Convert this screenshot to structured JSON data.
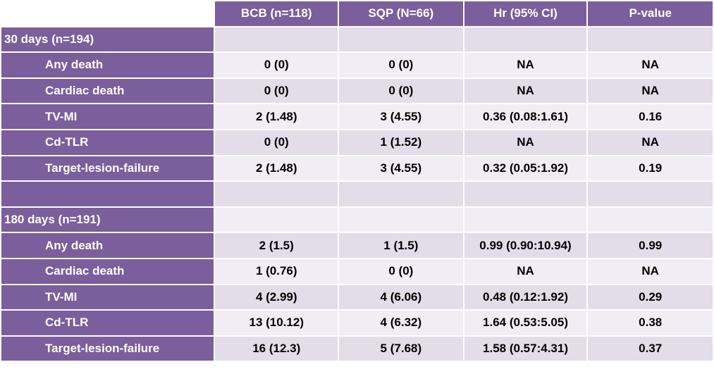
{
  "table": {
    "headers": [
      "",
      "BCB  (n=118)",
      "SQP (N=66)",
      "Hr (95% CI)",
      "P-value"
    ],
    "rows": [
      {
        "label": "30 days (n=194)",
        "kind": "section",
        "cells": [
          "",
          "",
          "",
          ""
        ]
      },
      {
        "label": "Any death",
        "kind": "item",
        "cells": [
          "0 (0)",
          "0 (0)",
          "NA",
          "NA"
        ]
      },
      {
        "label": "Cardiac death",
        "kind": "item",
        "cells": [
          "0 (0)",
          "0 (0)",
          "NA",
          "NA"
        ]
      },
      {
        "label": "TV-MI",
        "kind": "item",
        "cells": [
          "2 (1.48)",
          "3 (4.55)",
          "0.36 (0.08:1.61)",
          "0.16"
        ]
      },
      {
        "label": "Cd-TLR",
        "kind": "item",
        "cells": [
          "0 (0)",
          "1 (1.52)",
          "NA",
          "NA"
        ]
      },
      {
        "label": "Target-lesion-failure",
        "kind": "item",
        "cells": [
          "2 (1.48)",
          "3 (4.55)",
          "0.32 (0.05:1.92)",
          "0.19"
        ]
      },
      {
        "label": "",
        "kind": "blank",
        "cells": [
          "",
          "",
          "",
          ""
        ]
      },
      {
        "label": "180 days (n=191)",
        "kind": "section",
        "cells": [
          "",
          "",
          "",
          ""
        ]
      },
      {
        "label": "Any death",
        "kind": "item",
        "cells": [
          "2 (1.5)",
          "1 (1.5)",
          "0.99 (0.90:10.94)",
          "0.99"
        ]
      },
      {
        "label": "Cardiac death",
        "kind": "item",
        "cells": [
          "1 (0.76)",
          "0 (0)",
          "NA",
          "NA"
        ]
      },
      {
        "label": "TV-MI",
        "kind": "item",
        "cells": [
          "4 (2.99)",
          "4 (6.06)",
          "0.48 (0.12:1.92)",
          "0.29"
        ]
      },
      {
        "label": "Cd-TLR",
        "kind": "item",
        "cells": [
          "13 (10.12)",
          "4 (6.32)",
          "1.64 (0.53:5.05)",
          "0.38"
        ]
      },
      {
        "label": "Target-lesion-failure",
        "kind": "item",
        "cells": [
          "16 (12.3)",
          "5 (7.68)",
          "1.58 (0.57:4.31)",
          "0.37"
        ]
      }
    ]
  },
  "colors": {
    "header_purple": "#7b5e9c",
    "row_band_dark": "#e2dde9",
    "row_band_light": "#f0eef4"
  }
}
